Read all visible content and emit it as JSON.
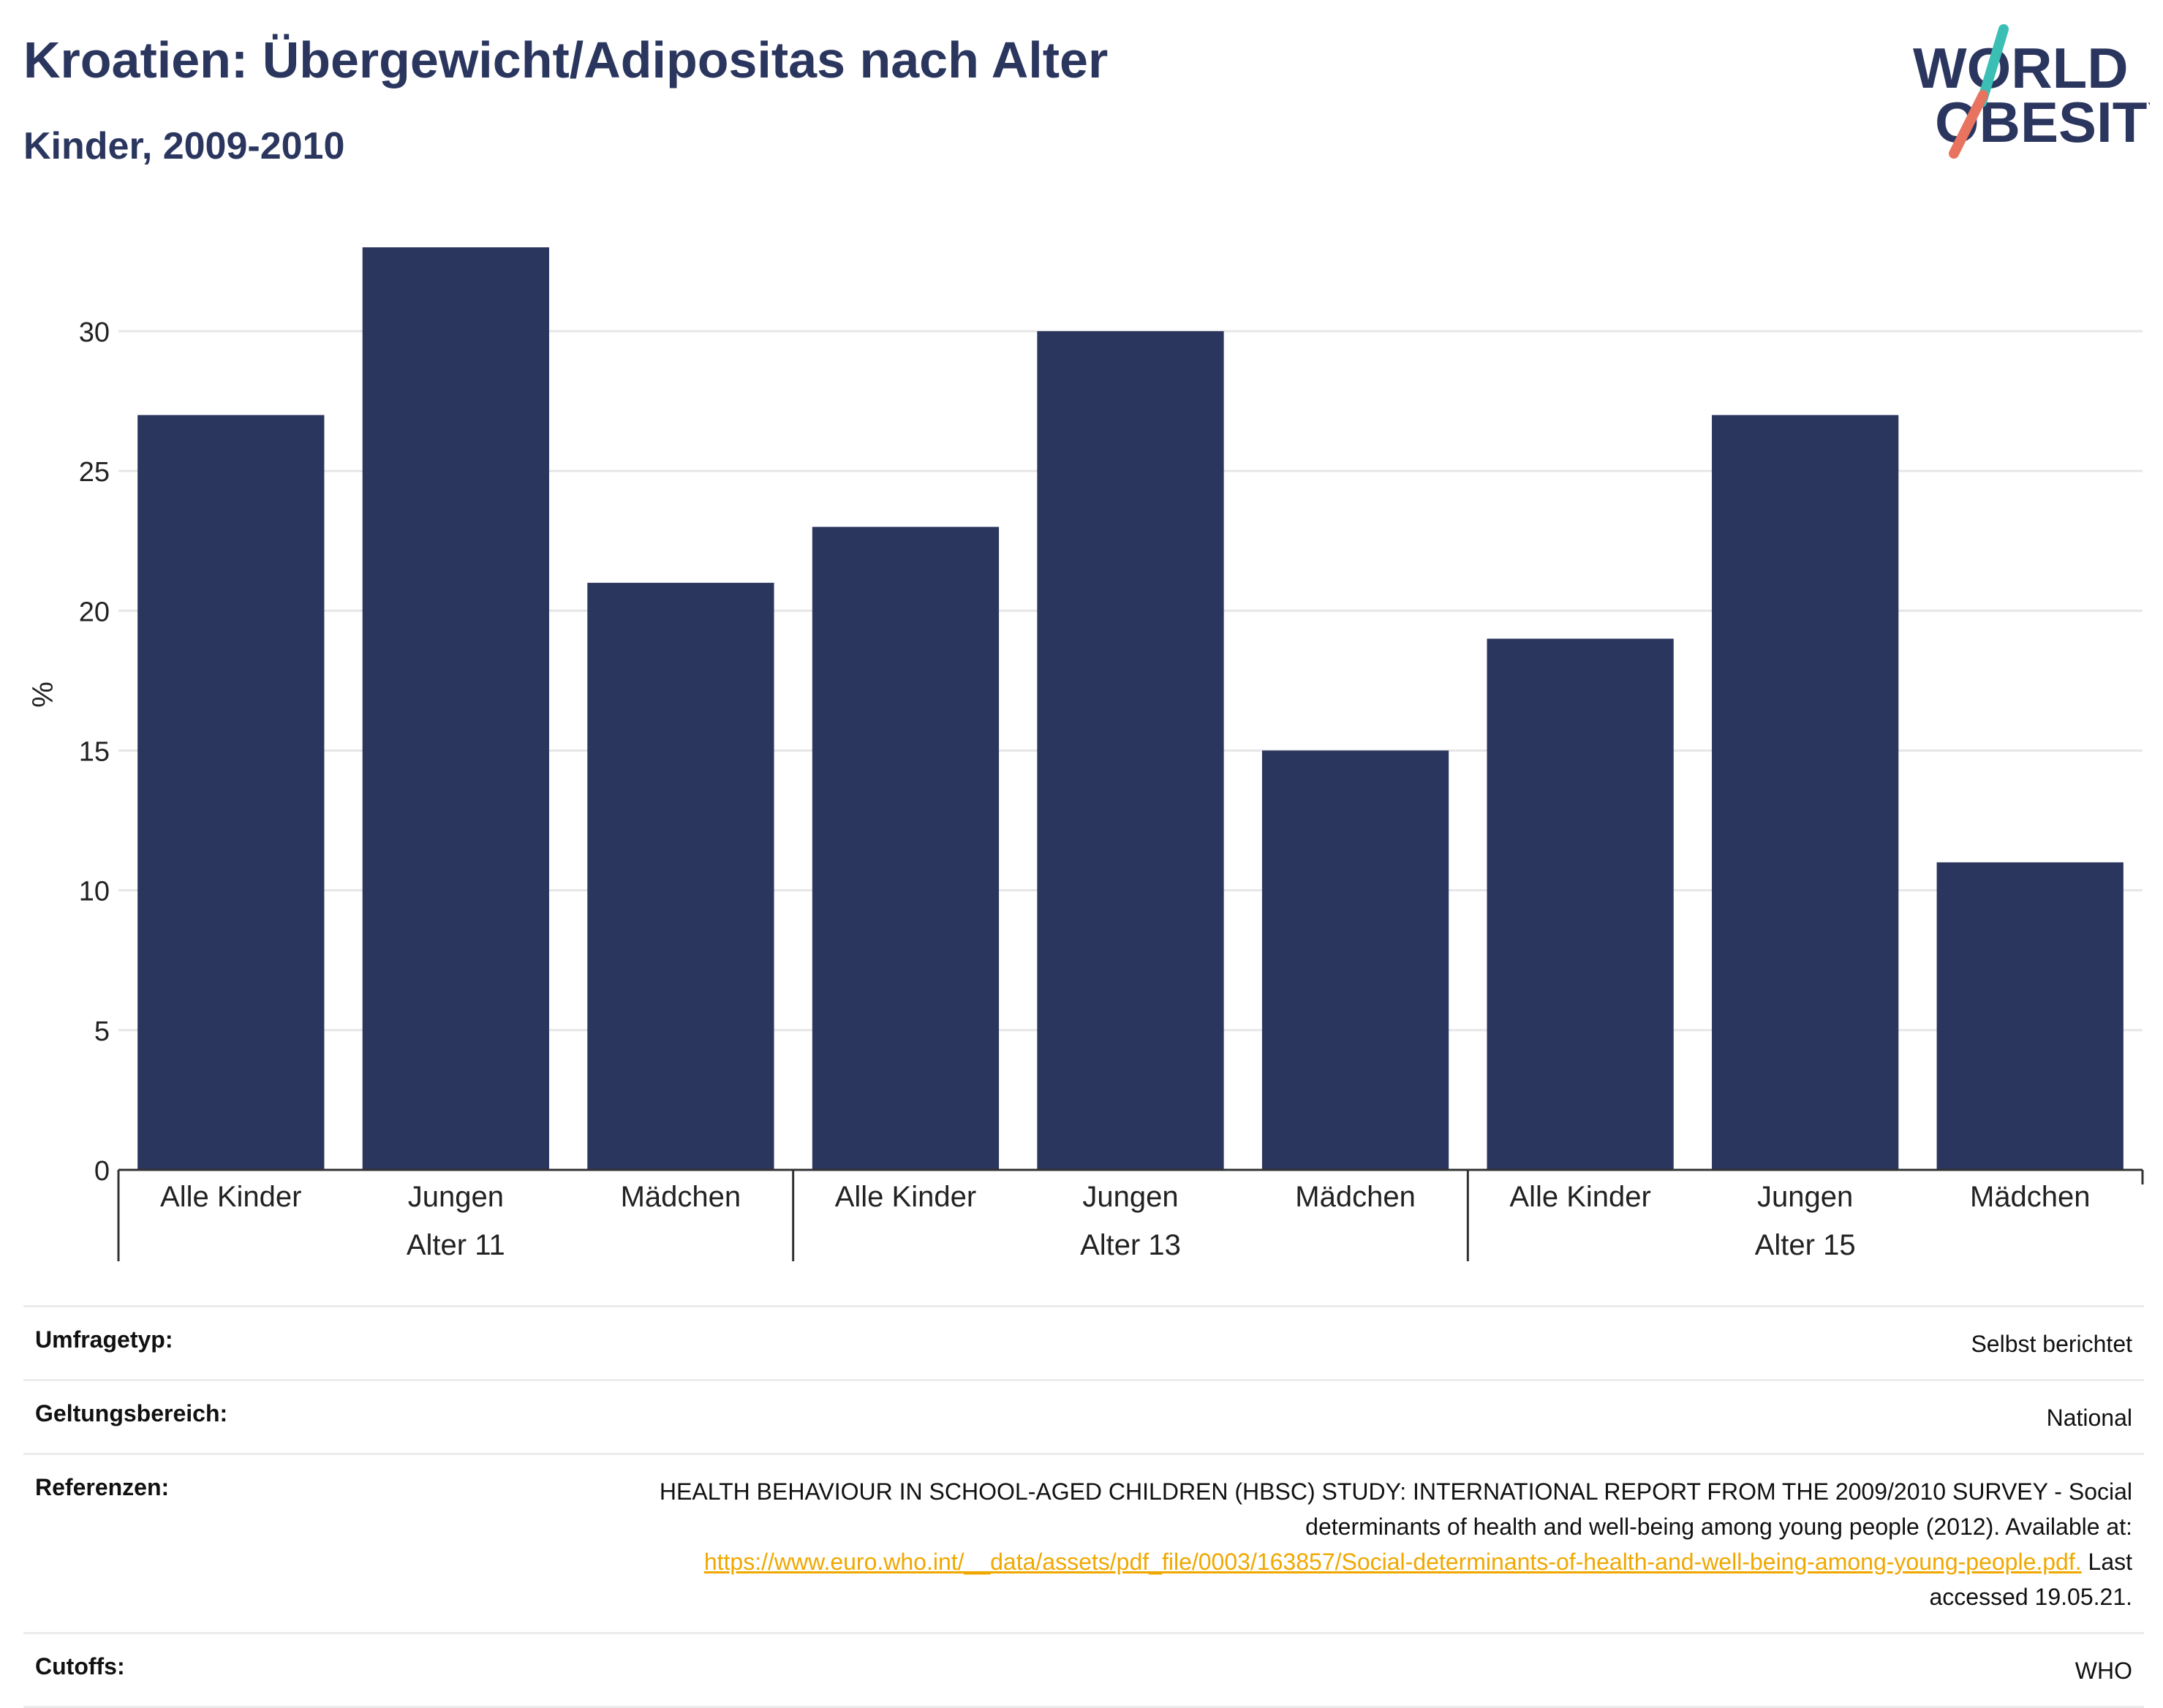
{
  "header": {
    "title": "Kroatien: Übergewicht/Adipositas nach Alter",
    "subtitle": "Kinder, 2009-2010"
  },
  "logo": {
    "line1": "WORLD",
    "line2": "OBESITY",
    "colors": {
      "text": "#2b365f",
      "slash_teal": "#3bbfb5",
      "slash_coral": "#e8735f"
    }
  },
  "colors": {
    "bar": "#2b365f",
    "grid": "#e6e6e6",
    "axis": "#333333"
  },
  "chart_data": {
    "type": "bar",
    "ylabel": "%",
    "ylim": [
      0,
      34
    ],
    "yticks": [
      0,
      5,
      10,
      15,
      20,
      25,
      30
    ],
    "grid": true,
    "groups": [
      {
        "label": "Alter 11",
        "categories": [
          "Alle Kinder",
          "Jungen",
          "Mädchen"
        ],
        "values": [
          27,
          33,
          21
        ]
      },
      {
        "label": "Alter 13",
        "categories": [
          "Alle Kinder",
          "Jungen",
          "Mädchen"
        ],
        "values": [
          23,
          30,
          15
        ]
      },
      {
        "label": "Alter 15",
        "categories": [
          "Alle Kinder",
          "Jungen",
          "Mädchen"
        ],
        "values": [
          19,
          27,
          11
        ]
      }
    ]
  },
  "meta": [
    {
      "label": "Umfragetyp:",
      "value": "Selbst berichtet"
    },
    {
      "label": "Geltungsbereich:",
      "value": "National"
    },
    {
      "label": "Referenzen:",
      "value": "HEALTH BEHAVIOUR IN SCHOOL-AGED CHILDREN (HBSC) STUDY: INTERNATIONAL REPORT FROM THE 2009/2010 SURVEY - Social determinants of health and well-being among young people (2012). Available at: ",
      "link": "https://www.euro.who.int/__data/assets/pdf_file/0003/163857/Social-determinants-of-health-and-well-being-among-young-people.pdf.",
      "suffix": " Last accessed 19.05.21."
    },
    {
      "label": "Cutoffs:",
      "value": "WHO"
    }
  ]
}
